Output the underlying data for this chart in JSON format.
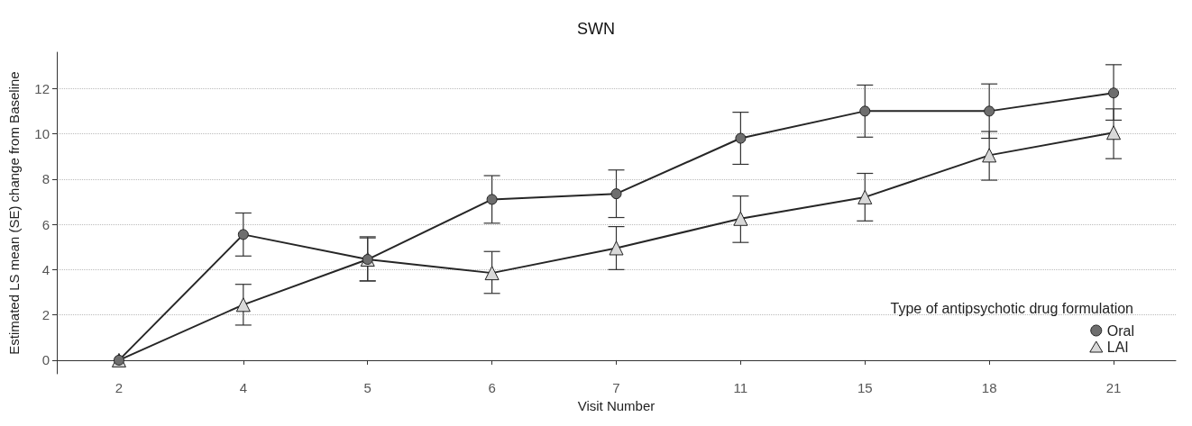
{
  "chart_data": {
    "type": "line",
    "title": "SWN",
    "xlabel": "Visit Number",
    "ylabel": "Estimated LS mean (SE) change from Baseline",
    "legend_title": "Type of antipsychotic drug formulation",
    "categories": [
      "2",
      "4",
      "5",
      "6",
      "7",
      "11",
      "15",
      "18",
      "21"
    ],
    "ylim": [
      -0.6,
      13.6
    ],
    "yticks": [
      0,
      2,
      4,
      6,
      8,
      10,
      12
    ],
    "grid": "y",
    "legend": "bottom right",
    "series": [
      {
        "name": "Oral",
        "color": "#6e6e6e",
        "marker": "circle",
        "values": [
          0,
          5.55,
          4.45,
          7.1,
          7.35,
          9.8,
          11.0,
          11.0,
          11.8
        ],
        "errors": [
          null,
          [
            4.6,
            6.5
          ],
          [
            3.5,
            5.45
          ],
          [
            6.05,
            8.15
          ],
          [
            6.3,
            8.4
          ],
          [
            8.65,
            10.95
          ],
          [
            9.85,
            12.15
          ],
          [
            9.8,
            12.2
          ],
          [
            10.6,
            13.05
          ]
        ]
      },
      {
        "name": "LAI",
        "color": "#d9d9d9",
        "marker": "triangle",
        "values": [
          0,
          2.45,
          4.45,
          3.85,
          4.95,
          6.25,
          7.2,
          9.05,
          10.05
        ],
        "errors": [
          null,
          [
            1.55,
            3.35
          ],
          [
            3.5,
            5.4
          ],
          [
            2.95,
            4.8
          ],
          [
            4.0,
            5.9
          ],
          [
            5.2,
            7.25
          ],
          [
            6.15,
            8.25
          ],
          [
            7.95,
            10.1
          ],
          [
            8.9,
            11.1
          ]
        ]
      }
    ]
  }
}
